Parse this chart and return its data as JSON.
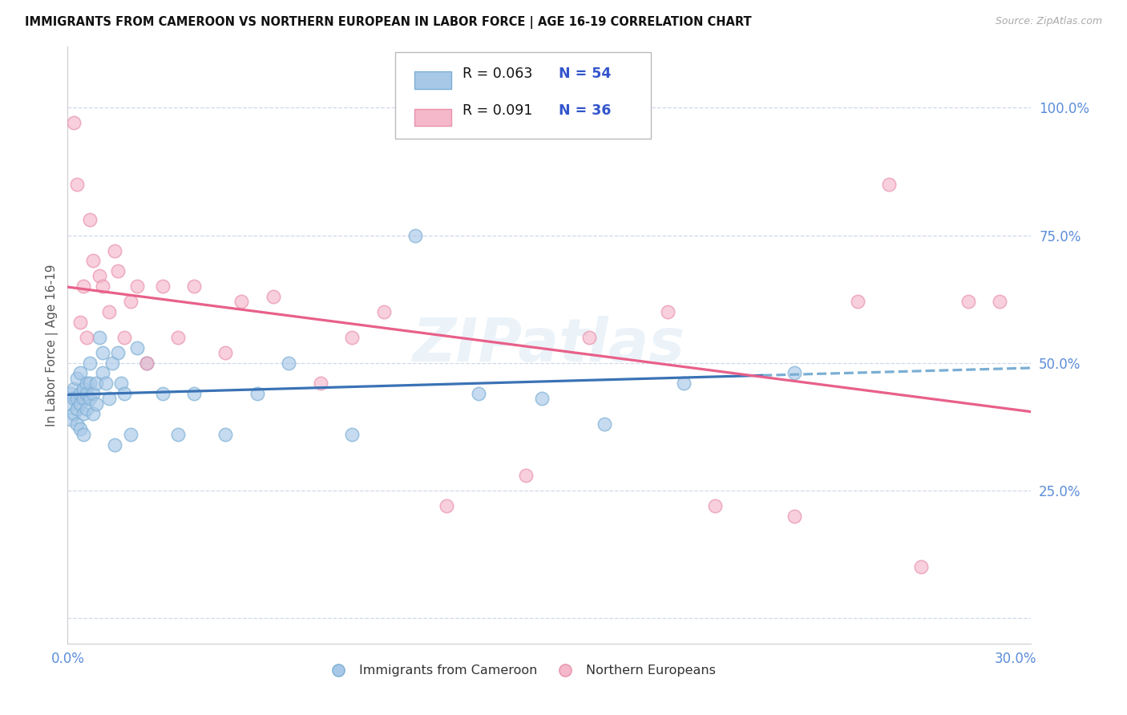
{
  "title": "IMMIGRANTS FROM CAMEROON VS NORTHERN EUROPEAN IN LABOR FORCE | AGE 16-19 CORRELATION CHART",
  "source": "Source: ZipAtlas.com",
  "ylabel": "In Labor Force | Age 16-19",
  "xlim": [
    0.0,
    0.305
  ],
  "ylim": [
    -0.05,
    1.12
  ],
  "ytick_vals": [
    0.0,
    0.25,
    0.5,
    0.75,
    1.0
  ],
  "ytick_labels": [
    "",
    "25.0%",
    "50.0%",
    "75.0%",
    "100.0%"
  ],
  "xtick_vals": [
    0.0,
    0.3
  ],
  "xtick_labels": [
    "0.0%",
    "30.0%"
  ],
  "color_blue_fill": "#a8c8e8",
  "color_blue_edge": "#7bafd4",
  "color_blue_line": "#3a72b5",
  "color_pink_fill": "#f5b8cb",
  "color_pink_edge": "#e890aa",
  "color_pink_line": "#e8608a",
  "color_dash": "#7aaed4",
  "grid_color": "#d0d8e8",
  "watermark": "ZIPatlas",
  "background_color": "#ffffff",
  "legend_entries": [
    {
      "r": "0.063",
      "n": "54",
      "color_fill": "#a8c8e8",
      "color_edge": "#7bafd4"
    },
    {
      "r": "0.091",
      "n": "36",
      "color_fill": "#f5b8cb",
      "color_edge": "#e890aa"
    }
  ],
  "cameroon_x": [
    0.001,
    0.001,
    0.001,
    0.002,
    0.002,
    0.002,
    0.003,
    0.003,
    0.003,
    0.003,
    0.004,
    0.004,
    0.004,
    0.004,
    0.005,
    0.005,
    0.005,
    0.005,
    0.006,
    0.006,
    0.006,
    0.007,
    0.007,
    0.007,
    0.008,
    0.008,
    0.009,
    0.009,
    0.01,
    0.011,
    0.011,
    0.012,
    0.013,
    0.014,
    0.015,
    0.016,
    0.017,
    0.018,
    0.02,
    0.022,
    0.025,
    0.03,
    0.035,
    0.04,
    0.05,
    0.06,
    0.07,
    0.09,
    0.11,
    0.13,
    0.15,
    0.17,
    0.195,
    0.23
  ],
  "cameroon_y": [
    0.44,
    0.42,
    0.39,
    0.45,
    0.43,
    0.4,
    0.47,
    0.43,
    0.41,
    0.38,
    0.44,
    0.48,
    0.42,
    0.37,
    0.45,
    0.43,
    0.4,
    0.36,
    0.46,
    0.44,
    0.41,
    0.5,
    0.46,
    0.43,
    0.44,
    0.4,
    0.46,
    0.42,
    0.55,
    0.52,
    0.48,
    0.46,
    0.43,
    0.5,
    0.34,
    0.52,
    0.46,
    0.44,
    0.36,
    0.53,
    0.5,
    0.44,
    0.36,
    0.44,
    0.36,
    0.44,
    0.5,
    0.36,
    0.75,
    0.44,
    0.43,
    0.38,
    0.46,
    0.48
  ],
  "northern_x": [
    0.002,
    0.003,
    0.004,
    0.005,
    0.006,
    0.007,
    0.008,
    0.01,
    0.011,
    0.013,
    0.015,
    0.016,
    0.018,
    0.02,
    0.022,
    0.025,
    0.03,
    0.035,
    0.04,
    0.05,
    0.055,
    0.065,
    0.08,
    0.09,
    0.1,
    0.12,
    0.145,
    0.165,
    0.19,
    0.205,
    0.23,
    0.25,
    0.26,
    0.27,
    0.285,
    0.295
  ],
  "northern_y": [
    0.97,
    0.85,
    0.58,
    0.65,
    0.55,
    0.78,
    0.7,
    0.67,
    0.65,
    0.6,
    0.72,
    0.68,
    0.55,
    0.62,
    0.65,
    0.5,
    0.65,
    0.55,
    0.65,
    0.52,
    0.62,
    0.63,
    0.46,
    0.55,
    0.6,
    0.22,
    0.28,
    0.55,
    0.6,
    0.22,
    0.2,
    0.62,
    0.85,
    0.1,
    0.62,
    0.62
  ],
  "blue_line_solid_end": 0.22,
  "blue_line_x_end": 0.305,
  "pink_line_x_end": 0.305
}
